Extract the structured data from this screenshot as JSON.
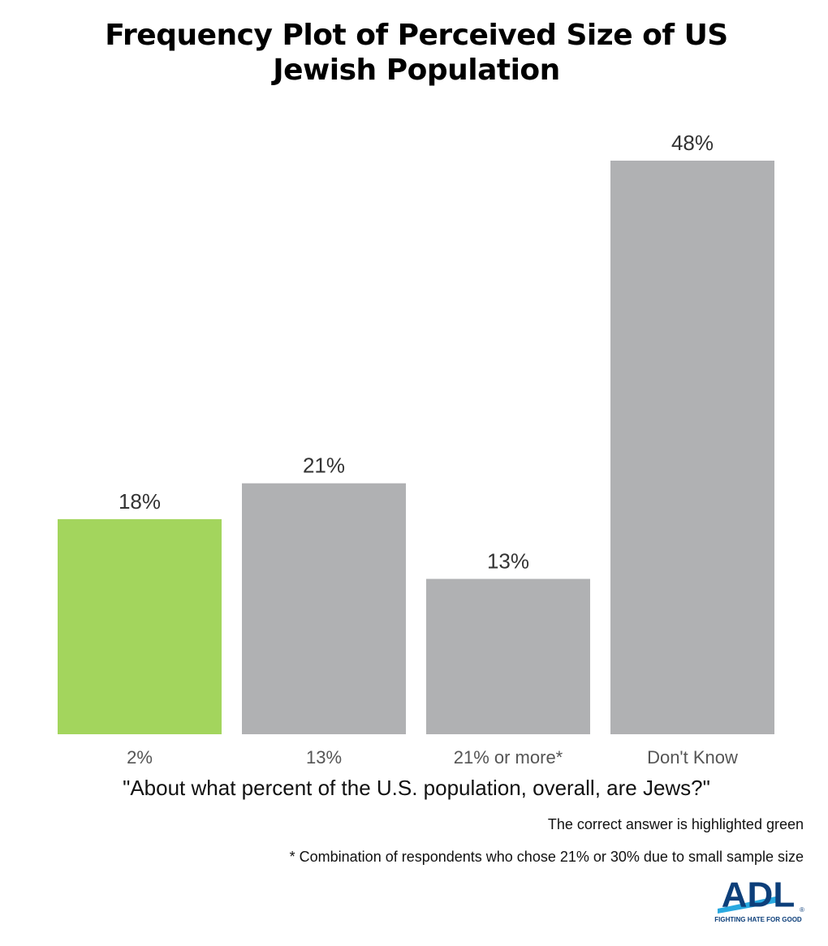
{
  "chart_data": {
    "type": "bar",
    "title": "Frequency Plot of Perceived Size of US Jewish Population",
    "categories": [
      "2%",
      "13%",
      "21% or more*",
      "Don't Know"
    ],
    "values": [
      18,
      21,
      13,
      48
    ],
    "value_labels": [
      "18%",
      "21%",
      "13%",
      "48%"
    ],
    "colors": [
      "#a3d55d",
      "#b0b1b3",
      "#b0b1b3",
      "#b0b1b3"
    ],
    "x_label": "\"About what percent of the U.S. population, overall, are Jews?\"",
    "notes": [
      "The correct answer is highlighted green",
      "* Combination of respondents who chose 21% or 30% due to small sample size"
    ]
  },
  "logo": {
    "text": "ADL",
    "mark": "®",
    "tagline": "FIGHTING HATE FOR GOOD"
  }
}
